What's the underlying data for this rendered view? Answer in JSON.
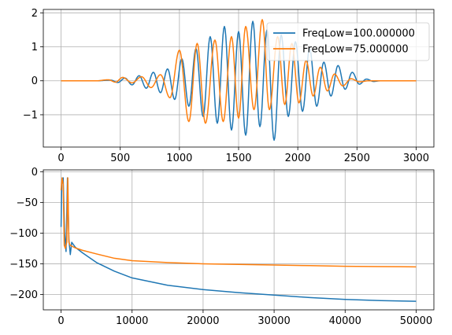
{
  "chart_data": [
    {
      "type": "line",
      "title": "",
      "xlabel": "",
      "ylabel": "",
      "xlim": [
        -150,
        3150
      ],
      "ylim": [
        -1.95,
        2.1
      ],
      "xticks": [
        0,
        500,
        1000,
        1500,
        2000,
        2500,
        3000
      ],
      "yticks": [
        -1,
        0,
        1,
        2
      ],
      "xtick_labels": [
        "0",
        "500",
        "1000",
        "1500",
        "2000",
        "2500",
        "3000"
      ],
      "ytick_labels": [
        "−1",
        "0",
        "1",
        "2"
      ],
      "grid": true,
      "legend_position": "top-right",
      "series": [
        {
          "name": "FreqLow=100.000000",
          "color": "#1f77b4",
          "peaks": [
            [
              300,
              0.0
            ],
            [
              420,
              0.02
            ],
            [
              480,
              -0.05
            ],
            [
              540,
              0.08
            ],
            [
              600,
              -0.12
            ],
            [
              660,
              0.15
            ],
            [
              720,
              -0.22
            ],
            [
              780,
              0.25
            ],
            [
              840,
              -0.35
            ],
            [
              900,
              0.35
            ],
            [
              960,
              -0.55
            ],
            [
              1020,
              0.65
            ],
            [
              1080,
              -0.75
            ],
            [
              1140,
              0.95
            ],
            [
              1200,
              -1.05
            ],
            [
              1260,
              1.3
            ],
            [
              1320,
              -1.25
            ],
            [
              1380,
              1.6
            ],
            [
              1440,
              -1.45
            ],
            [
              1500,
              1.45
            ],
            [
              1560,
              -1.6
            ],
            [
              1620,
              1.75
            ],
            [
              1680,
              -1.35
            ],
            [
              1740,
              1.5
            ],
            [
              1800,
              -1.75
            ],
            [
              1860,
              1.35
            ],
            [
              1920,
              -1.05
            ],
            [
              1980,
              1.15
            ],
            [
              2040,
              -0.9
            ],
            [
              2100,
              0.95
            ],
            [
              2160,
              -0.75
            ],
            [
              2220,
              0.55
            ],
            [
              2280,
              -0.45
            ],
            [
              2340,
              0.45
            ],
            [
              2400,
              -0.25
            ],
            [
              2460,
              0.25
            ],
            [
              2520,
              -0.1
            ],
            [
              2580,
              0.05
            ],
            [
              2640,
              -0.02
            ],
            [
              2700,
              0.0
            ]
          ]
        },
        {
          "name": "FreqLow=75.000000",
          "color": "#ff7f0e",
          "peaks": [
            [
              300,
              0.0
            ],
            [
              400,
              0.03
            ],
            [
              460,
              -0.04
            ],
            [
              520,
              0.1
            ],
            [
              600,
              -0.06
            ],
            [
              680,
              0.12
            ],
            [
              760,
              -0.2
            ],
            [
              840,
              0.18
            ],
            [
              920,
              -0.5
            ],
            [
              1000,
              0.9
            ],
            [
              1080,
              -1.2
            ],
            [
              1150,
              1.1
            ],
            [
              1220,
              -1.25
            ],
            [
              1300,
              1.2
            ],
            [
              1370,
              -1.2
            ],
            [
              1440,
              1.3
            ],
            [
              1500,
              -1.1
            ],
            [
              1560,
              1.6
            ],
            [
              1630,
              -0.85
            ],
            [
              1700,
              1.8
            ],
            [
              1760,
              -0.85
            ],
            [
              1830,
              1.3
            ],
            [
              1890,
              -0.7
            ],
            [
              1950,
              1.1
            ],
            [
              2010,
              -0.65
            ],
            [
              2070,
              0.6
            ],
            [
              2130,
              -0.45
            ],
            [
              2190,
              0.4
            ],
            [
              2250,
              -0.3
            ],
            [
              2310,
              0.2
            ],
            [
              2380,
              -0.15
            ],
            [
              2450,
              0.06
            ],
            [
              2520,
              -0.03
            ],
            [
              2600,
              0.0
            ]
          ]
        }
      ]
    },
    {
      "type": "line",
      "title": "",
      "xlabel": "",
      "ylabel": "",
      "xlim": [
        -2500,
        52500
      ],
      "ylim": [
        -225,
        3
      ],
      "xticks": [
        0,
        10000,
        20000,
        30000,
        40000,
        50000
      ],
      "yticks": [
        0,
        -50,
        -100,
        -150,
        -200
      ],
      "xtick_labels": [
        "0",
        "10000",
        "20000",
        "30000",
        "40000",
        "50000"
      ],
      "ytick_labels": [
        "0",
        "−50",
        "−100",
        "−150",
        "−200"
      ],
      "grid": true,
      "series": [
        {
          "color": "#1f77b4",
          "points": [
            [
              0,
              -90
            ],
            [
              100,
              -20
            ],
            [
              300,
              -10
            ],
            [
              500,
              -100
            ],
            [
              700,
              -130
            ],
            [
              900,
              -10
            ],
            [
              1100,
              -110
            ],
            [
              1300,
              -135
            ],
            [
              1500,
              -115
            ],
            [
              2000,
              -123
            ],
            [
              3000,
              -132
            ],
            [
              5000,
              -148
            ],
            [
              7500,
              -162
            ],
            [
              10000,
              -173
            ],
            [
              15000,
              -185
            ],
            [
              20000,
              -192
            ],
            [
              25000,
              -197
            ],
            [
              30000,
              -201
            ],
            [
              35000,
              -205
            ],
            [
              40000,
              -208
            ],
            [
              45000,
              -210
            ],
            [
              50000,
              -211
            ]
          ]
        },
        {
          "color": "#ff7f0e",
          "points": [
            [
              0,
              -30
            ],
            [
              150,
              -10
            ],
            [
              300,
              -20
            ],
            [
              450,
              -120
            ],
            [
              600,
              -125
            ],
            [
              800,
              -115
            ],
            [
              950,
              -10
            ],
            [
              1100,
              -115
            ],
            [
              1300,
              -120
            ],
            [
              2000,
              -124
            ],
            [
              3000,
              -128
            ],
            [
              5000,
              -134
            ],
            [
              7500,
              -141
            ],
            [
              10000,
              -145
            ],
            [
              15000,
              -148
            ],
            [
              20000,
              -150
            ],
            [
              25000,
              -151
            ],
            [
              30000,
              -152
            ],
            [
              35000,
              -153
            ],
            [
              40000,
              -154
            ],
            [
              45000,
              -154.5
            ],
            [
              50000,
              -155
            ]
          ]
        }
      ]
    }
  ]
}
